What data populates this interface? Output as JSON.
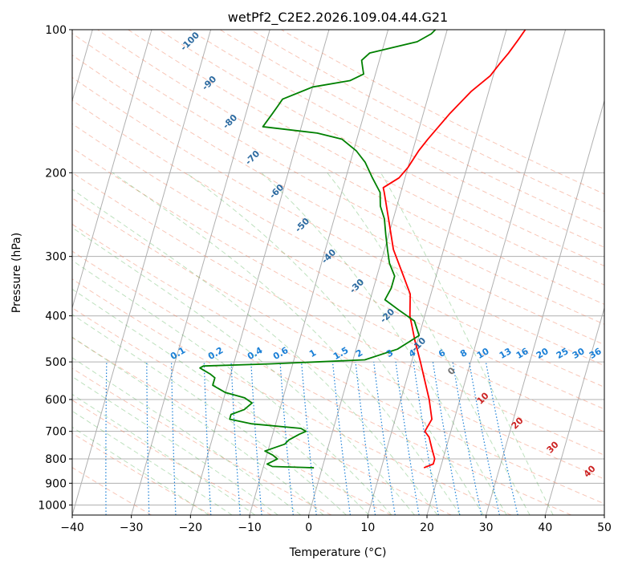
{
  "chart_data": {
    "type": "line",
    "subtype": "skew-t log-p diagram",
    "title": "wetPf2_C2E2.2026.109.04.44.G21",
    "xlabel": "Temperature (°C)",
    "ylabel": "Pressure (hPa)",
    "xlim": [
      -40,
      50
    ],
    "ylim": [
      1050,
      100
    ],
    "y_scale": "log",
    "x_ticks": [
      -40,
      -30,
      -20,
      -10,
      0,
      10,
      20,
      30,
      40,
      50
    ],
    "x_tick_labels": [
      "−40",
      "−30",
      "−20",
      "−10",
      "0",
      "10",
      "20",
      "30",
      "40",
      "50"
    ],
    "y_ticks": [
      100,
      200,
      300,
      400,
      500,
      600,
      700,
      800,
      900,
      1000
    ],
    "y_tick_labels": [
      "100",
      "200",
      "300",
      "400",
      "500",
      "600",
      "700",
      "800",
      "900",
      "1000"
    ],
    "grid": true,
    "series": [
      {
        "name": "temperature",
        "color": "#ff0000",
        "points": [
          [
            835,
            17.2
          ],
          [
            820,
            18.6
          ],
          [
            800,
            18.6
          ],
          [
            760,
            17.6
          ],
          [
            720,
            16.6
          ],
          [
            700,
            15.6
          ],
          [
            660,
            16.2
          ],
          [
            600,
            14.8
          ],
          [
            500,
            11.5
          ],
          [
            450,
            9.5
          ],
          [
            400,
            7.5
          ],
          [
            360,
            6.5
          ],
          [
            330,
            4.5
          ],
          [
            290,
            1.5
          ],
          [
            250,
            -0.8
          ],
          [
            220,
            -2.8
          ],
          [
            215,
            -3.2
          ],
          [
            205,
            -1.0
          ],
          [
            195,
            0.0
          ],
          [
            180,
            1.0
          ],
          [
            170,
            2.0
          ],
          [
            150,
            4.5
          ],
          [
            135,
            7.0
          ],
          [
            125,
            9.5
          ],
          [
            118,
            10.5
          ],
          [
            112,
            11.5
          ],
          [
            105,
            12.5
          ],
          [
            100,
            13.2
          ]
        ]
      },
      {
        "name": "dewpoint",
        "color": "#008000",
        "points": [
          [
            835,
            -1.4
          ],
          [
            830,
            -8.5
          ],
          [
            820,
            -9.5
          ],
          [
            800,
            -8.0
          ],
          [
            785,
            -9.0
          ],
          [
            770,
            -10.5
          ],
          [
            745,
            -7.5
          ],
          [
            730,
            -7.0
          ],
          [
            710,
            -5.5
          ],
          [
            700,
            -4.5
          ],
          [
            690,
            -5.5
          ],
          [
            675,
            -14.0
          ],
          [
            660,
            -18.0
          ],
          [
            645,
            -18.0
          ],
          [
            630,
            -16.0
          ],
          [
            610,
            -15.0
          ],
          [
            595,
            -16.5
          ],
          [
            580,
            -20.0
          ],
          [
            560,
            -22.5
          ],
          [
            540,
            -22.5
          ],
          [
            530,
            -23.5
          ],
          [
            515,
            -25.5
          ],
          [
            510,
            -25.0
          ],
          [
            505,
            -14.0
          ],
          [
            495,
            2.0
          ],
          [
            470,
            7.0
          ],
          [
            440,
            10.0
          ],
          [
            410,
            8.5
          ],
          [
            390,
            5.5
          ],
          [
            370,
            2.5
          ],
          [
            350,
            3.0
          ],
          [
            330,
            3.0
          ],
          [
            310,
            1.5
          ],
          [
            290,
            0.5
          ],
          [
            270,
            -0.5
          ],
          [
            250,
            -1.5
          ],
          [
            235,
            -2.8
          ],
          [
            220,
            -3.5
          ],
          [
            205,
            -5.5
          ],
          [
            190,
            -7.5
          ],
          [
            180,
            -9.5
          ],
          [
            170,
            -12.5
          ],
          [
            165,
            -17.0
          ],
          [
            160,
            -26.5
          ],
          [
            150,
            -25.5
          ],
          [
            145,
            -25.0
          ],
          [
            140,
            -24.5
          ],
          [
            132,
            -20.0
          ],
          [
            128,
            -14.0
          ],
          [
            124,
            -12.0
          ],
          [
            120,
            -12.5
          ],
          [
            116,
            -13.0
          ],
          [
            112,
            -12.0
          ],
          [
            106,
            -4.5
          ],
          [
            102,
            -2.5
          ],
          [
            100,
            -2.0
          ]
        ]
      }
    ],
    "dry_adiabat_labels": [
      "-100",
      "-90",
      "-80",
      "-70",
      "-60",
      "-50",
      "-40",
      "-30",
      "-20",
      "-10"
    ],
    "mixing_ratio_labels": [
      "0.1",
      "0.2",
      "0.4",
      "0.6",
      "1",
      "1.5",
      "2",
      "3",
      "4",
      "6",
      "8",
      "10",
      "13",
      "16",
      "20",
      "25",
      "30",
      "36"
    ],
    "moist_adiabat_labels": [
      "0",
      "10",
      "20",
      "30",
      "40"
    ]
  }
}
